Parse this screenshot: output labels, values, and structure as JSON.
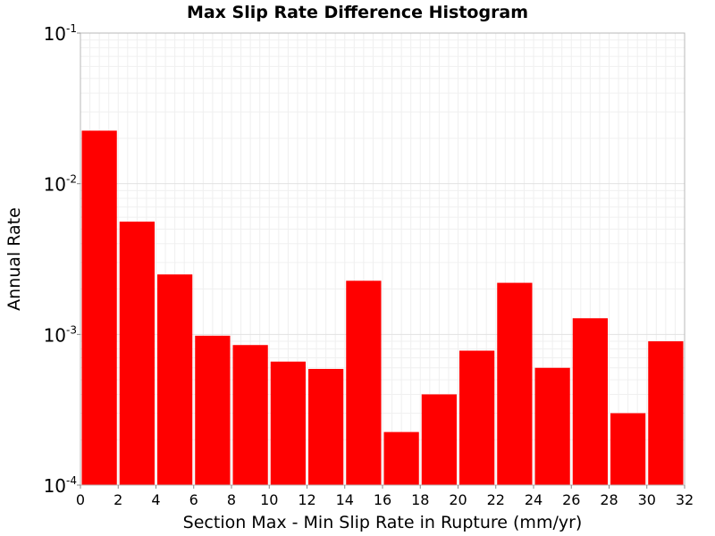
{
  "chart_data": {
    "type": "bar",
    "title": "Max Slip Rate Difference Histogram",
    "xlabel": "Section Max - Min Slip Rate in Rupture (mm/yr)",
    "ylabel": "Annual Rate",
    "xlim": [
      0,
      32
    ],
    "ylim": [
      0.0001,
      0.1
    ],
    "yscale": "log",
    "grid": true,
    "bar_color": "#ff0000",
    "bin_width": 2,
    "x": [
      1,
      3,
      5,
      7,
      9,
      11,
      13,
      15,
      17,
      19,
      21,
      23,
      25,
      27,
      29,
      31
    ],
    "values": [
      0.0225,
      0.0056,
      0.0025,
      0.00098,
      0.00085,
      0.00066,
      0.00059,
      0.00227,
      0.000225,
      0.0004,
      0.00078,
      0.0022,
      0.0006,
      0.00128,
      0.0003,
      0.0009
    ],
    "xticks": [
      "0",
      "2",
      "4",
      "6",
      "8",
      "10",
      "12",
      "14",
      "16",
      "18",
      "20",
      "22",
      "24",
      "26",
      "28",
      "30",
      "32"
    ],
    "yticks": [
      {
        "base": "10",
        "exp": "-4",
        "value": 0.0001
      },
      {
        "base": "10",
        "exp": "-3",
        "value": 0.001
      },
      {
        "base": "10",
        "exp": "-2",
        "value": 0.01
      },
      {
        "base": "10",
        "exp": "-1",
        "value": 0.1
      }
    ]
  }
}
